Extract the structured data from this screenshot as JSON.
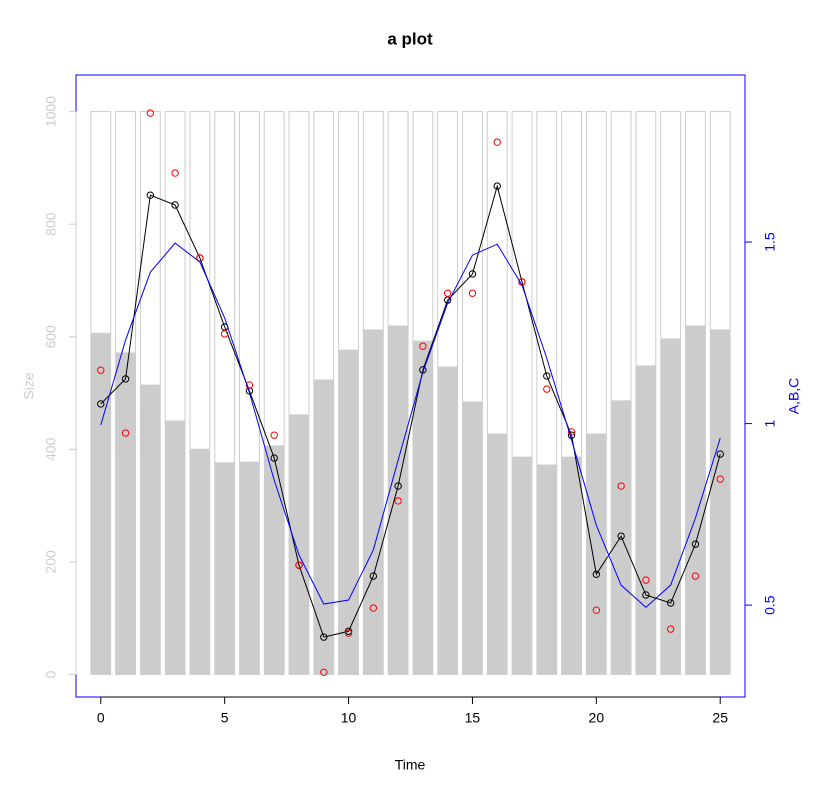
{
  "chart_data": {
    "type": "combo",
    "title": "a plot",
    "xlabel": "Time",
    "ylabel": "Size",
    "y2label": "A,B,C",
    "x": [
      0,
      1,
      2,
      3,
      4,
      5,
      6,
      7,
      8,
      9,
      10,
      11,
      12,
      13,
      14,
      15,
      16,
      17,
      18,
      19,
      20,
      21,
      22,
      23,
      24,
      25
    ],
    "xlim": [
      -1,
      26
    ],
    "xticks": [
      0,
      5,
      10,
      15,
      20,
      25
    ],
    "ylim": [
      -40,
      1065
    ],
    "yticks": [
      0,
      200,
      400,
      600,
      800,
      1000
    ],
    "y_axis_color": "#cccccc",
    "y2lim": [
      0.247,
      1.96
    ],
    "y2ticks": [
      0.5,
      1,
      1.5
    ],
    "y2_axis_color": "#0000ff",
    "box_color": "#0000ff",
    "bar_width": 0.8,
    "series": [
      {
        "type": "bar",
        "color": "#ffffff",
        "edge": "#cccccc",
        "values": [
          1000,
          1000,
          1000,
          1000,
          1000,
          1000,
          1000,
          1000,
          1000,
          1000,
          1000,
          1000,
          1000,
          1000,
          1000,
          1000,
          1000,
          1000,
          1000,
          1000,
          1000,
          1000,
          1000,
          1000,
          1000,
          1000
        ]
      },
      {
        "type": "bar",
        "color": "#cccccc",
        "values": [
          607,
          572,
          515,
          451,
          401,
          377,
          378,
          407,
          462,
          524,
          577,
          613,
          620,
          593,
          547,
          485,
          428,
          387,
          373,
          387,
          428,
          487,
          549,
          597,
          620,
          613
        ]
      },
      {
        "type": "line",
        "marker": true,
        "axis": "y2",
        "color": "#000000",
        "values": [
          1.054,
          1.123,
          1.629,
          1.602,
          1.456,
          1.266,
          1.09,
          0.905,
          0.61,
          0.412,
          0.428,
          0.58,
          0.828,
          1.148,
          1.34,
          1.412,
          1.654,
          1.39,
          1.131,
          0.968,
          0.585,
          0.69,
          0.528,
          0.506,
          0.668,
          0.916
        ]
      },
      {
        "type": "scatter",
        "axis": "y2",
        "color": "#ff0000",
        "values": [
          1.147,
          0.974,
          1.855,
          1.69,
          1.456,
          1.247,
          1.106,
          0.968,
          0.61,
          0.315,
          0.423,
          0.492,
          0.787,
          1.213,
          1.359,
          1.359,
          1.775,
          1.39,
          1.095,
          0.977,
          0.486,
          0.828,
          0.569,
          0.434,
          0.58,
          0.847
        ]
      },
      {
        "type": "line",
        "marker": false,
        "axis": "y2",
        "color": "#0000ff",
        "values": [
          0.996,
          1.23,
          1.417,
          1.497,
          1.445,
          1.291,
          1.085,
          0.844,
          0.638,
          0.503,
          0.514,
          0.652,
          0.899,
          1.142,
          1.332,
          1.464,
          1.494,
          1.381,
          1.18,
          0.955,
          0.72,
          0.555,
          0.494,
          0.555,
          0.74,
          0.96
        ]
      }
    ]
  }
}
